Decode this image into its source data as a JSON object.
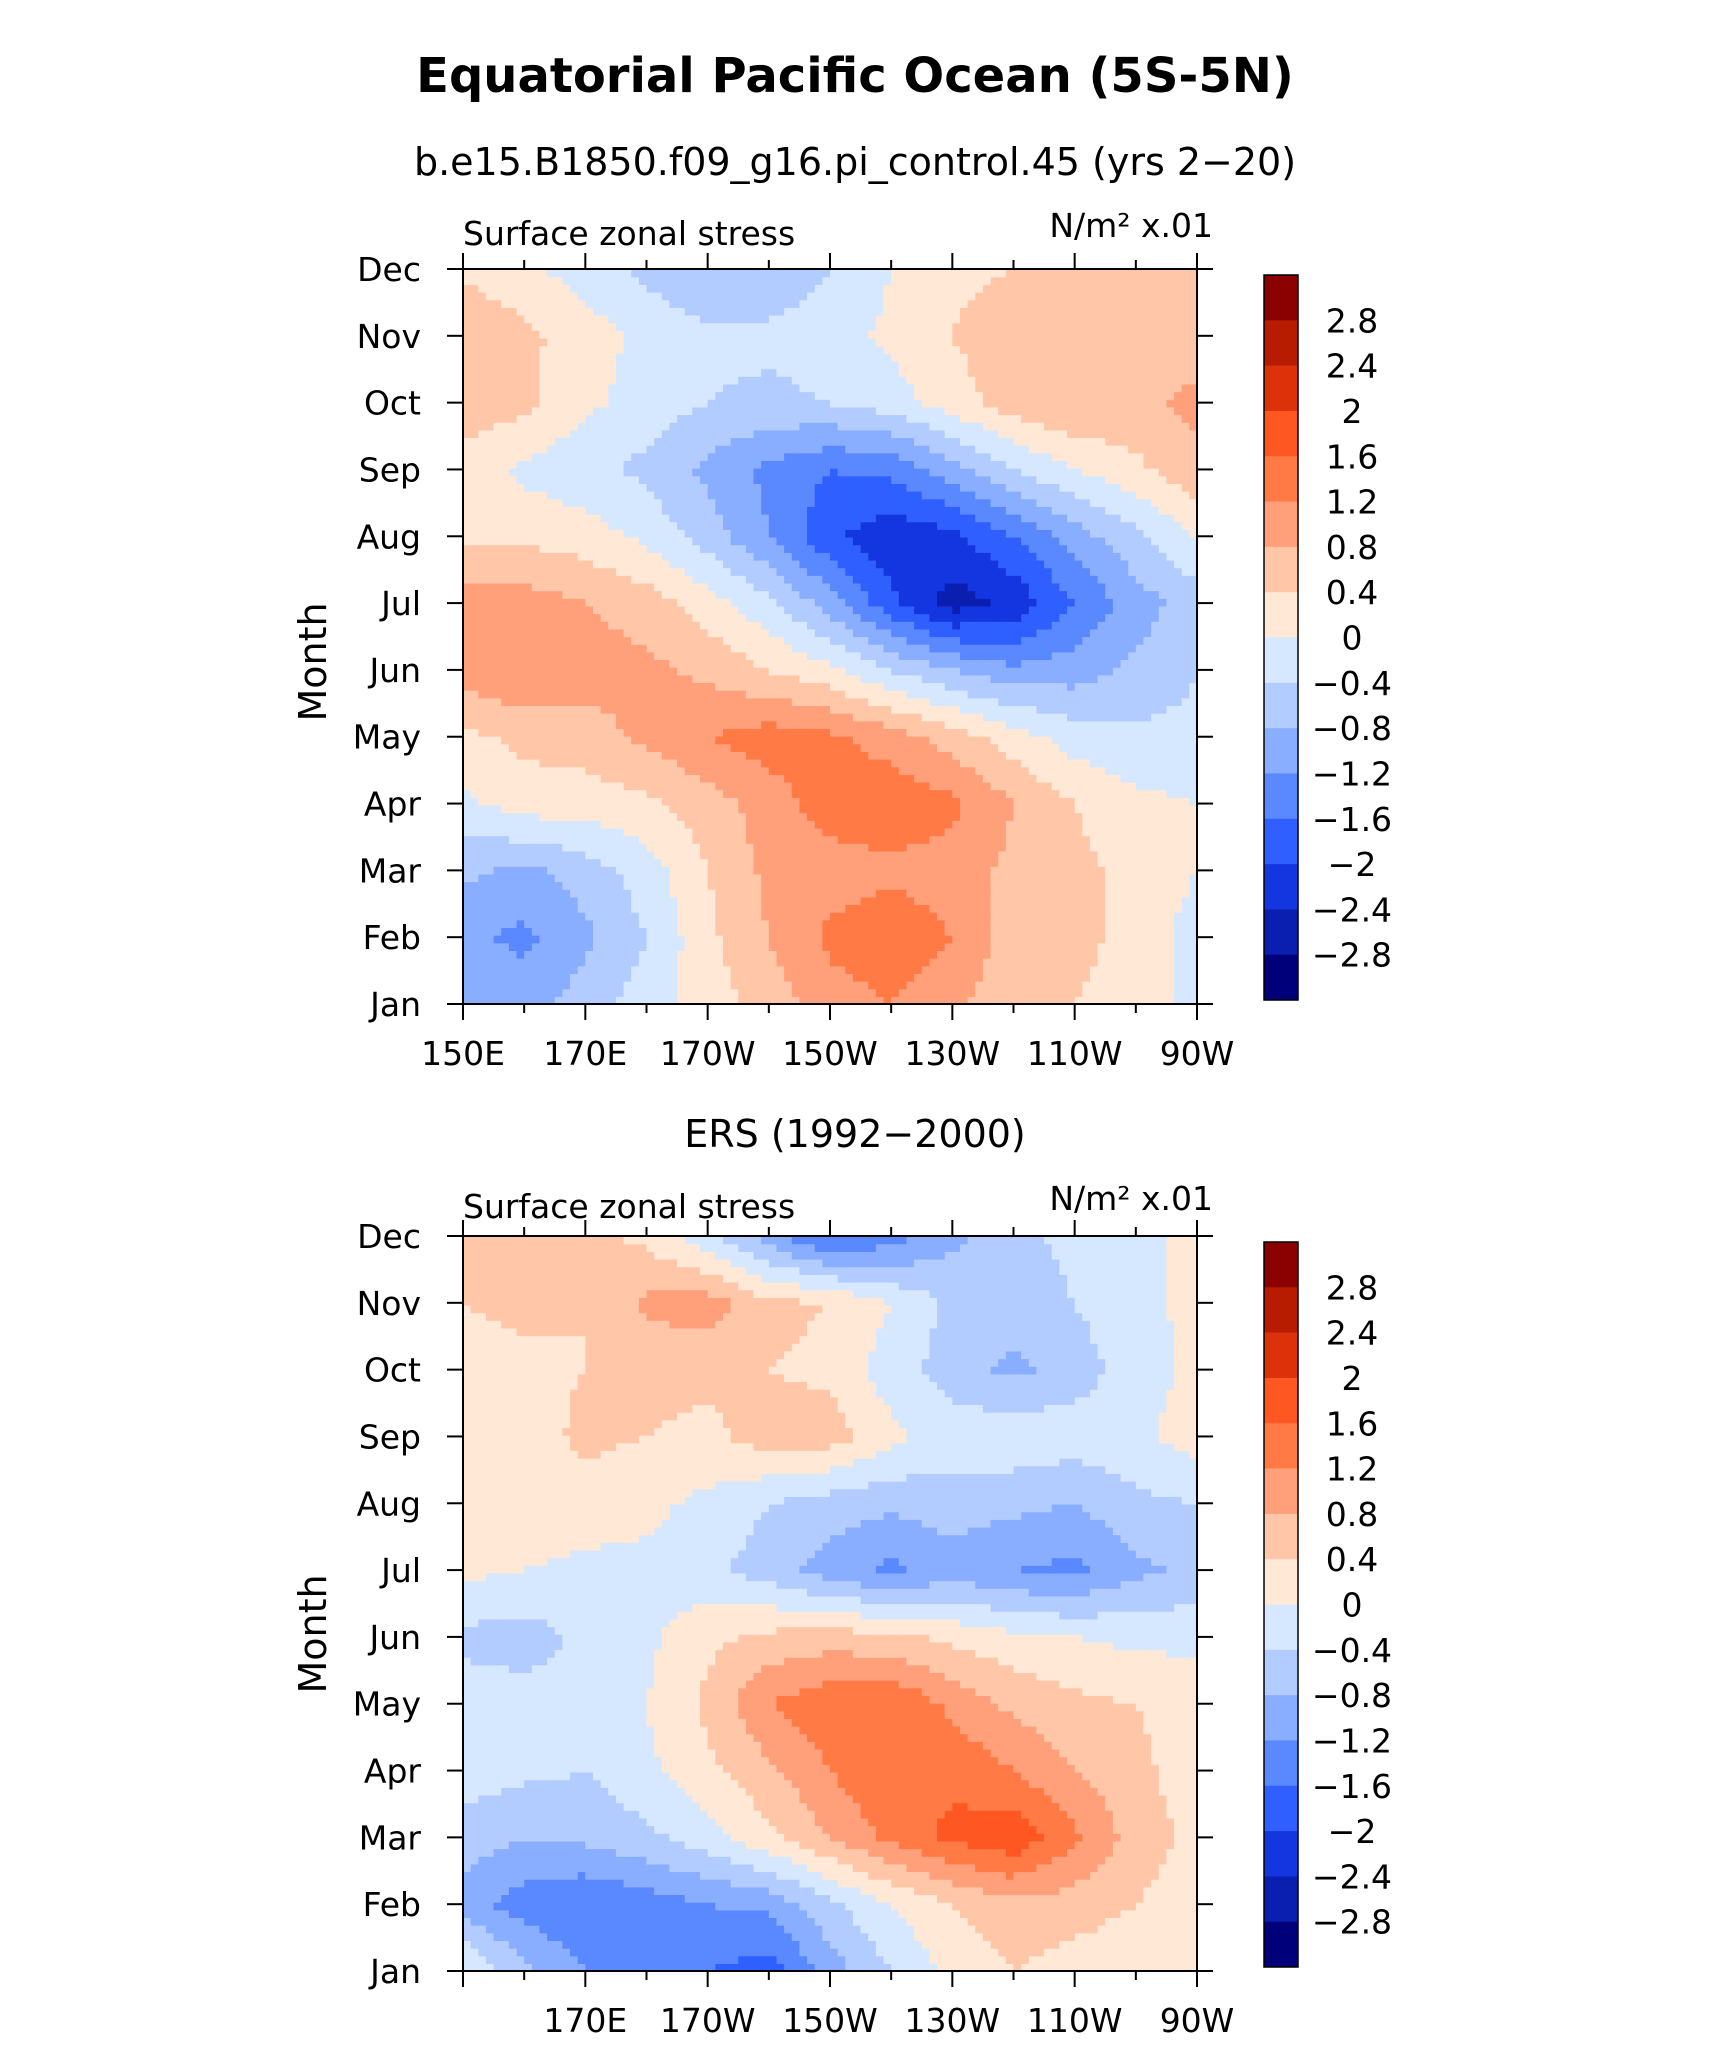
{
  "figure": {
    "title": "Equatorial Pacific Ocean (5S-5N)"
  },
  "colorbar": {
    "levels": [
      "2.8",
      "2.4",
      "2",
      "1.6",
      "1.2",
      "0.8",
      "0.4",
      "0",
      "−0.4",
      "−0.8",
      "−1.2",
      "−1.6",
      "−2",
      "−2.4",
      "−2.8"
    ],
    "colors": [
      "#8B0000",
      "#B71C00",
      "#DD3209",
      "#FF5722",
      "#FF7A45",
      "#FFA07A",
      "#FFC7A8",
      "#FFE8D6",
      "#D6E8FF",
      "#B3CCFF",
      "#8AAEFF",
      "#5A88FF",
      "#2F5FFF",
      "#1436E0",
      "#0A1FB0",
      "#00007A"
    ]
  },
  "chart_data": [
    {
      "type": "heatmap",
      "panel_title": "b.e15.B1850.f09_g16.pi_control.45 (yrs 2−20)",
      "left_string": "Surface zonal stress",
      "right_string": "N/m² x.01",
      "ylabel": "Month",
      "x_tick_labels": [
        "150E",
        "170E",
        "170W",
        "150W",
        "130W",
        "110W",
        "90W"
      ],
      "y_tick_labels": [
        "Jan",
        "Feb",
        "Mar",
        "Apr",
        "May",
        "Jun",
        "Jul",
        "Aug",
        "Sep",
        "Oct",
        "Nov",
        "Dec"
      ],
      "x": [
        "150E",
        "160E",
        "170E",
        "180",
        "170W",
        "160W",
        "150W",
        "140W",
        "130W",
        "120W",
        "110W",
        "100W",
        "90W"
      ],
      "y": [
        "Jan",
        "Feb",
        "Mar",
        "Apr",
        "May",
        "Jun",
        "Jul",
        "Aug",
        "Sep",
        "Oct",
        "Nov",
        "Dec"
      ],
      "z": [
        [
          -0.8,
          -1.0,
          -0.6,
          -0.2,
          0.2,
          0.6,
          1.0,
          1.2,
          0.9,
          0.5,
          0.4,
          0.2,
          -0.1
        ],
        [
          -1.1,
          -1.3,
          -0.9,
          -0.4,
          0.3,
          0.8,
          1.3,
          1.5,
          1.2,
          0.6,
          0.5,
          0.3,
          -0.2
        ],
        [
          -0.7,
          -0.9,
          -0.6,
          -0.2,
          0.4,
          0.9,
          1.0,
          1.1,
          1.0,
          0.7,
          0.5,
          0.3,
          0.0
        ],
        [
          -0.1,
          0.2,
          0.2,
          0.3,
          0.6,
          1.0,
          1.4,
          1.5,
          1.3,
          0.8,
          0.4,
          0.1,
          0.0
        ],
        [
          0.3,
          0.5,
          0.6,
          0.9,
          1.2,
          1.4,
          1.3,
          1.0,
          0.6,
          0.2,
          -0.2,
          -0.3,
          -0.3
        ],
        [
          1.0,
          1.2,
          1.0,
          0.9,
          0.7,
          0.4,
          0.1,
          -0.4,
          -0.8,
          -1.1,
          -1.0,
          -0.7,
          -0.4
        ],
        [
          1.0,
          1.0,
          0.8,
          0.6,
          0.2,
          -0.3,
          -1.0,
          -1.9,
          -2.6,
          -2.3,
          -1.6,
          -1.0,
          -0.6
        ],
        [
          0.3,
          0.3,
          0.2,
          -0.1,
          -0.6,
          -1.2,
          -1.9,
          -2.3,
          -2.1,
          -1.6,
          -1.0,
          -0.5,
          0.0
        ],
        [
          0.2,
          -0.1,
          -0.3,
          -0.5,
          -0.9,
          -1.3,
          -1.6,
          -1.5,
          -1.0,
          -0.4,
          0.0,
          0.3,
          0.7
        ],
        [
          0.7,
          0.5,
          0.1,
          -0.2,
          -0.4,
          -0.5,
          -0.4,
          -0.2,
          0.2,
          0.6,
          0.8,
          0.7,
          0.9
        ],
        [
          0.8,
          0.5,
          0.2,
          -0.1,
          -0.3,
          -0.3,
          -0.2,
          0.1,
          0.4,
          0.7,
          0.6,
          0.6,
          0.6
        ],
        [
          0.3,
          0.1,
          -0.2,
          -0.5,
          -0.8,
          -0.7,
          -0.4,
          0.0,
          0.3,
          0.4,
          0.5,
          0.4,
          0.4
        ]
      ],
      "levels": [
        -2.8,
        -2.4,
        -2.0,
        -1.6,
        -1.2,
        -0.8,
        -0.4,
        0,
        0.4,
        0.8,
        1.2,
        1.6,
        2.0,
        2.4,
        2.8
      ],
      "zlim": [
        -3.2,
        3.2
      ]
    },
    {
      "type": "heatmap",
      "panel_title": "ERS (1992−2000)",
      "left_string": "Surface zonal stress",
      "right_string": "N/m² x.01",
      "ylabel": "Month",
      "x_tick_labels": [
        "170E",
        "170W",
        "150W",
        "130W",
        "110W",
        "90W"
      ],
      "y_tick_labels": [
        "Jan",
        "Feb",
        "Mar",
        "Apr",
        "May",
        "Jun",
        "Jul",
        "Aug",
        "Sep",
        "Oct",
        "Nov",
        "Dec"
      ],
      "x": [
        "150E",
        "160E",
        "170E",
        "180",
        "170W",
        "160W",
        "150W",
        "140W",
        "130W",
        "120W",
        "110W",
        "100W",
        "90W"
      ],
      "y": [
        "Jan",
        "Feb",
        "Mar",
        "Apr",
        "May",
        "Jun",
        "Jul",
        "Aug",
        "Sep",
        "Oct",
        "Nov",
        "Dec"
      ],
      "z": [
        [
          0.1,
          -0.7,
          -1.2,
          -1.5,
          -1.6,
          -1.8,
          -1.0,
          -0.4,
          0.1,
          0.4,
          0.2,
          0.1,
          0.0
        ],
        [
          -1.0,
          -1.4,
          -1.6,
          -1.4,
          -1.2,
          -1.1,
          -0.5,
          0.0,
          0.4,
          0.7,
          0.6,
          0.4,
          0.2
        ],
        [
          -0.6,
          -0.8,
          -0.7,
          -0.5,
          -0.2,
          0.3,
          0.8,
          1.3,
          1.7,
          1.9,
          1.3,
          0.6,
          0.3
        ],
        [
          -0.2,
          -0.3,
          -0.4,
          -0.1,
          0.3,
          0.7,
          1.2,
          1.6,
          1.5,
          1.2,
          0.8,
          0.5,
          0.2
        ],
        [
          -0.2,
          -0.2,
          -0.3,
          0.0,
          0.5,
          1.2,
          1.5,
          1.6,
          1.1,
          0.7,
          0.5,
          0.4,
          0.2
        ],
        [
          -0.5,
          -0.6,
          -0.3,
          -0.1,
          0.3,
          0.5,
          0.6,
          0.5,
          0.3,
          0.1,
          0.0,
          -0.1,
          -0.1
        ],
        [
          0.1,
          0.0,
          -0.1,
          -0.1,
          -0.3,
          -0.6,
          -1.0,
          -1.3,
          -1.0,
          -1.2,
          -1.3,
          -0.9,
          -0.7
        ],
        [
          0.2,
          0.3,
          0.2,
          0.1,
          -0.1,
          -0.4,
          -0.6,
          -0.7,
          -0.6,
          -0.7,
          -0.8,
          -0.5,
          -0.4
        ],
        [
          0.3,
          0.2,
          0.5,
          0.4,
          0.3,
          0.6,
          0.6,
          0.1,
          -0.2,
          -0.1,
          -0.2,
          -0.1,
          0.2
        ],
        [
          0.2,
          0.3,
          0.4,
          0.5,
          0.5,
          0.4,
          0.3,
          -0.2,
          -0.6,
          -0.9,
          -0.6,
          -0.2,
          0.1
        ],
        [
          0.4,
          0.5,
          0.4,
          0.9,
          1.0,
          0.5,
          0.4,
          0.0,
          -0.5,
          -0.6,
          -0.4,
          -0.1,
          0.1
        ],
        [
          0.4,
          0.6,
          0.5,
          0.3,
          -0.3,
          -1.0,
          -1.7,
          -1.4,
          -0.9,
          -0.5,
          -0.3,
          -0.1,
          0.1
        ]
      ],
      "levels": [
        -2.8,
        -2.4,
        -2.0,
        -1.6,
        -1.2,
        -0.8,
        -0.4,
        0,
        0.4,
        0.8,
        1.2,
        1.6,
        2.0,
        2.4,
        2.8
      ],
      "zlim": [
        -3.2,
        3.2
      ]
    }
  ]
}
